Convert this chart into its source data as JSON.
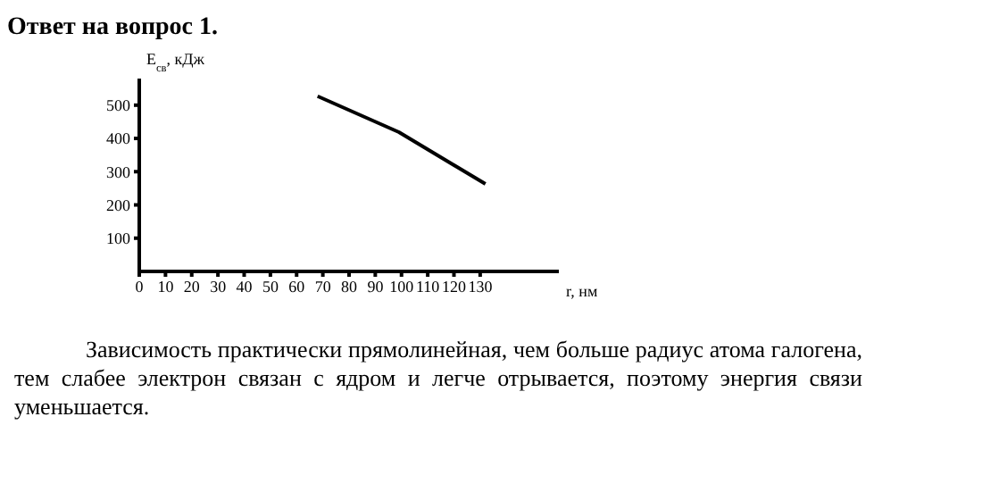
{
  "chart_data": {
    "type": "line",
    "title": "Ответ на вопрос 1.",
    "ylabel": "E$_{св}$, кДж",
    "xlabel": "r, нм",
    "x": [
      68,
      99,
      132
    ],
    "series": [
      {
        "color": "#000000",
        "values": [
          527,
          419,
          263
        ]
      }
    ],
    "xlim": [
      0,
      160
    ],
    "xticks": [
      0,
      10,
      20,
      30,
      40,
      50,
      60,
      70,
      80,
      90,
      100,
      110,
      120,
      130
    ],
    "ylim": [
      0,
      580
    ],
    "yticks": [
      100,
      200,
      300,
      400,
      500
    ],
    "grid": false,
    "legend": false,
    "marker": "none",
    "line_style": "solid",
    "annotations": [
      "Зависимость практически прямолинейная, чем больше радиус атома галогена, тем слабее электрон связан с ядром и легче отрывается, поэтому энергия связи уменьшается."
    ]
  }
}
